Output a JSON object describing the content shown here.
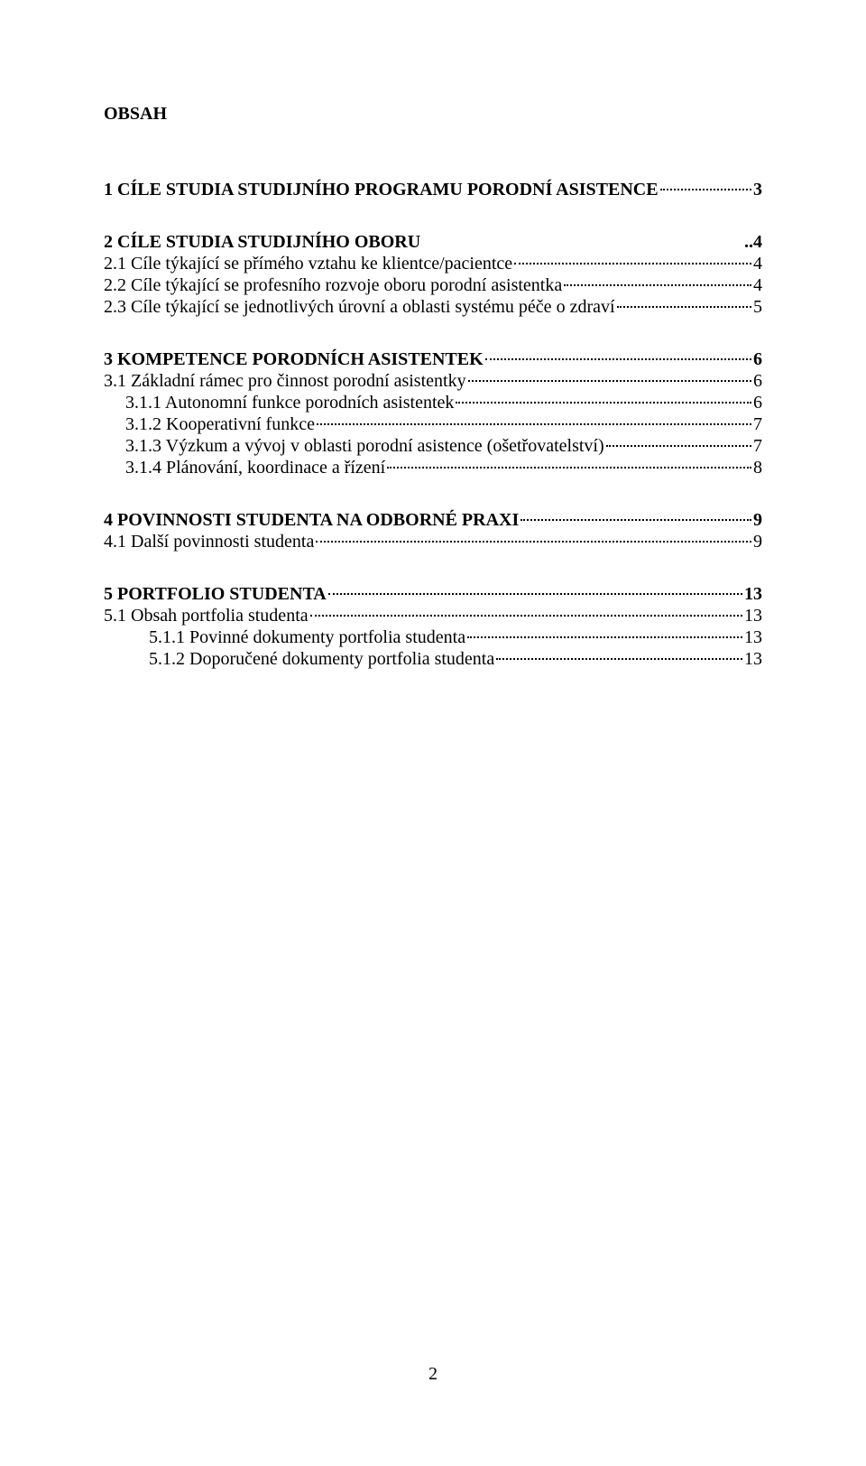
{
  "title": "OBSAH",
  "page_number": "2",
  "toc": [
    {
      "label": "1 CÍLE STUDIA STUDIJNÍHO PROGRAMU PORODNÍ ASISTENCE",
      "page": "3",
      "bold": true,
      "indent": 0,
      "level": 0,
      "dots": true
    },
    {
      "label": "2 CÍLE STUDIA STUDIJNÍHO OBORU",
      "page": "4",
      "bold": true,
      "indent": 0,
      "level": 0,
      "dots": false
    },
    {
      "label": "2.1 Cíle týkající se přímého vztahu ke klientce/pacientce",
      "page": "4",
      "bold": false,
      "indent": 0,
      "level": 1,
      "dots": true
    },
    {
      "label": "2.2 Cíle týkající se profesního rozvoje oboru porodní asistentka",
      "page": "4",
      "bold": false,
      "indent": 0,
      "level": 1,
      "dots": true
    },
    {
      "label": "2.3 Cíle týkající se jednotlivých úrovní a oblasti systému péče o zdraví",
      "page": "5",
      "bold": false,
      "indent": 0,
      "level": 1,
      "dots": true
    },
    {
      "label": "3 KOMPETENCE PORODNÍCH ASISTENTEK",
      "page": "6",
      "bold": true,
      "indent": 0,
      "level": 0,
      "dots": true
    },
    {
      "label": "3.1 Základní rámec pro činnost porodní asistentky",
      "page": "6",
      "bold": false,
      "indent": 0,
      "level": 1,
      "dots": true
    },
    {
      "label": "3.1.1 Autonomní funkce porodních asistentek",
      "page": "6",
      "bold": false,
      "indent": 1,
      "level": 1,
      "dots": true
    },
    {
      "label": "3.1.2 Kooperativní funkce",
      "page": "7",
      "bold": false,
      "indent": 1,
      "level": 1,
      "dots": true
    },
    {
      "label": "3.1.3 Výzkum a vývoj v oblasti porodní asistence (ošetřovatelství)",
      "page": "7",
      "bold": false,
      "indent": 1,
      "level": 1,
      "dots": true
    },
    {
      "label": "3.1.4 Plánování, koordinace a řízení",
      "page": "8",
      "bold": false,
      "indent": 1,
      "level": 1,
      "dots": true
    },
    {
      "label": "4 POVINNOSTI STUDENTA NA ODBORNÉ PRAXI",
      "page": "9",
      "bold": true,
      "indent": 0,
      "level": 0,
      "dots": true
    },
    {
      "label": "4.1 Další povinnosti studenta",
      "page": "9",
      "bold": false,
      "indent": 0,
      "level": 1,
      "dots": true
    },
    {
      "label": "5 PORTFOLIO STUDENTA",
      "page": "13",
      "bold": true,
      "indent": 0,
      "level": 0,
      "dots": true
    },
    {
      "label": "5.1 Obsah portfolia studenta",
      "page": "13",
      "bold": false,
      "indent": 0,
      "level": 1,
      "dots": true
    },
    {
      "label": "5.1.1 Povinné dokumenty portfolia studenta",
      "page": " 13",
      "bold": false,
      "indent": 2,
      "level": 1,
      "dots": true
    },
    {
      "label": "5.1.2 Doporučené dokumenty  portfolia studenta",
      "page": "13",
      "bold": false,
      "indent": 2,
      "level": 1,
      "dots": true
    }
  ]
}
